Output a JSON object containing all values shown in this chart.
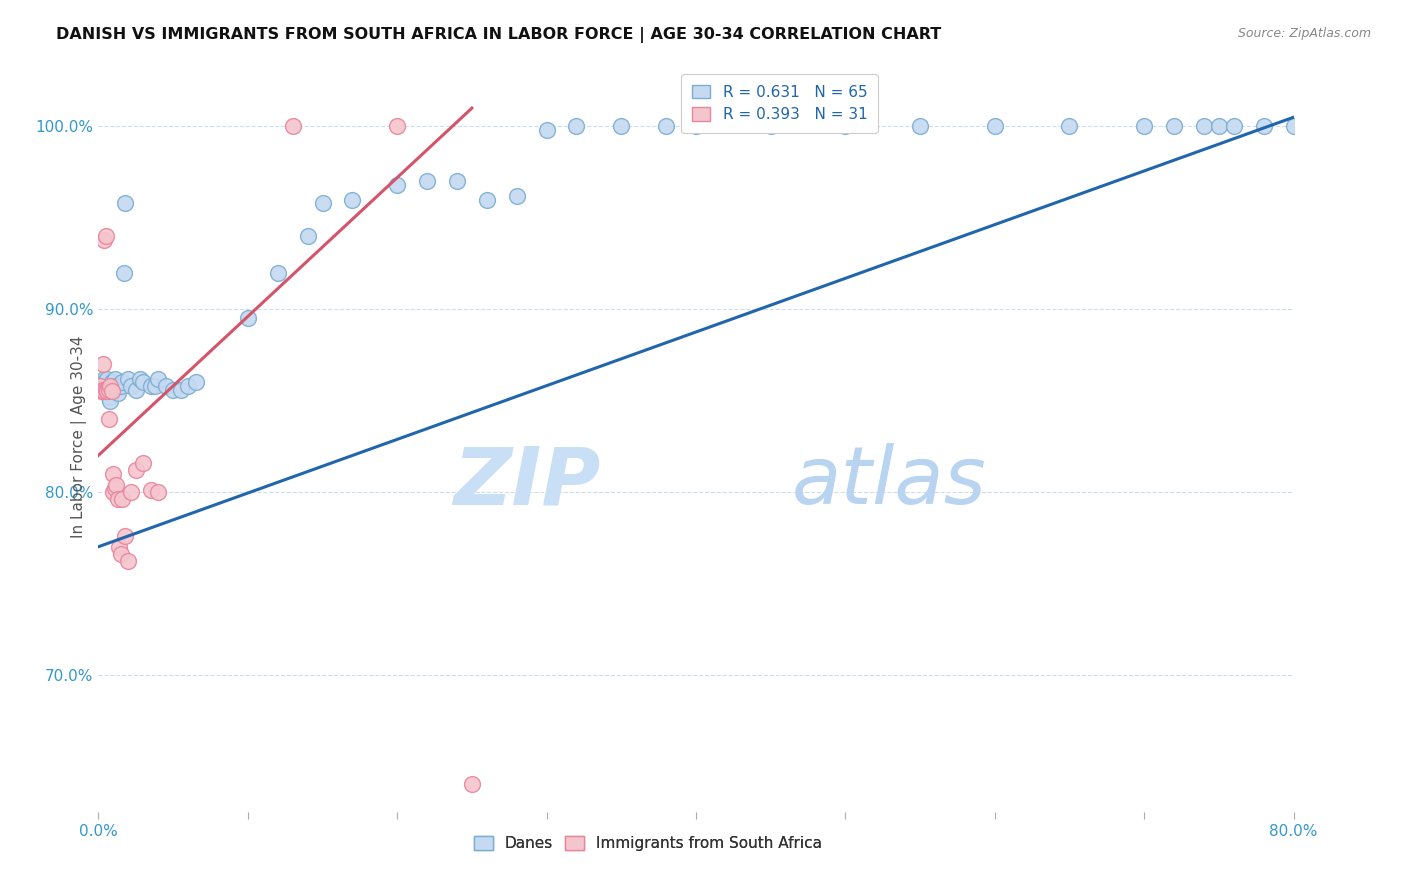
{
  "title": "DANISH VS IMMIGRANTS FROM SOUTH AFRICA IN LABOR FORCE | AGE 30-34 CORRELATION CHART",
  "source": "Source: ZipAtlas.com",
  "ylabel": "In Labor Force | Age 30-34",
  "xlim": [
    0.0,
    0.8
  ],
  "ylim": [
    0.625,
    1.035
  ],
  "ytick_positions": [
    0.7,
    0.8,
    0.9,
    1.0
  ],
  "ytick_labels": [
    "70.0%",
    "80.0%",
    "90.0%",
    "100.0%"
  ],
  "xtick_positions": [
    0.0,
    0.1,
    0.2,
    0.3,
    0.4,
    0.5,
    0.6,
    0.7,
    0.8
  ],
  "xtick_labels": [
    "0.0%",
    "",
    "",
    "",
    "",
    "",
    "",
    "",
    "80.0%"
  ],
  "legend_blue_label": "R = 0.631   N = 65",
  "legend_pink_label": "R = 0.393   N = 31",
  "scatter_blue_face": "#c5d9f0",
  "scatter_blue_edge": "#7aadd4",
  "scatter_pink_face": "#f5c5ce",
  "scatter_pink_edge": "#e8859a",
  "line_blue_color": "#2166ac",
  "line_pink_color": "#d4546a",
  "watermark_zip": "ZIP",
  "watermark_atlas": "atlas",
  "watermark_color": "#ddeeff",
  "background_color": "#ffffff",
  "blue_x": [
    0.002,
    0.003,
    0.004,
    0.004,
    0.005,
    0.005,
    0.006,
    0.006,
    0.007,
    0.007,
    0.007,
    0.008,
    0.008,
    0.009,
    0.009,
    0.01,
    0.01,
    0.011,
    0.012,
    0.013,
    0.014,
    0.015,
    0.016,
    0.017,
    0.018,
    0.02,
    0.022,
    0.025,
    0.028,
    0.03,
    0.035,
    0.038,
    0.04,
    0.045,
    0.05,
    0.055,
    0.06,
    0.065,
    0.1,
    0.12,
    0.14,
    0.15,
    0.17,
    0.2,
    0.22,
    0.24,
    0.26,
    0.28,
    0.3,
    0.32,
    0.35,
    0.38,
    0.4,
    0.45,
    0.5,
    0.55,
    0.6,
    0.65,
    0.7,
    0.72,
    0.74,
    0.75,
    0.76,
    0.78,
    0.8
  ],
  "blue_y": [
    0.856,
    0.858,
    0.862,
    0.86,
    0.856,
    0.855,
    0.858,
    0.862,
    0.855,
    0.858,
    0.852,
    0.85,
    0.858,
    0.856,
    0.86,
    0.855,
    0.858,
    0.862,
    0.858,
    0.854,
    0.858,
    0.858,
    0.86,
    0.92,
    0.958,
    0.862,
    0.858,
    0.856,
    0.862,
    0.86,
    0.858,
    0.858,
    0.862,
    0.858,
    0.856,
    0.856,
    0.858,
    0.86,
    0.895,
    0.92,
    0.94,
    0.958,
    0.96,
    0.968,
    0.97,
    0.97,
    0.96,
    0.962,
    0.998,
    1.0,
    1.0,
    1.0,
    1.0,
    1.0,
    1.0,
    1.0,
    1.0,
    1.0,
    1.0,
    1.0,
    1.0,
    1.0,
    1.0,
    1.0,
    1.0
  ],
  "pink_x": [
    0.001,
    0.002,
    0.003,
    0.003,
    0.004,
    0.004,
    0.005,
    0.005,
    0.006,
    0.007,
    0.007,
    0.008,
    0.009,
    0.01,
    0.01,
    0.011,
    0.012,
    0.013,
    0.014,
    0.015,
    0.016,
    0.018,
    0.02,
    0.022,
    0.025,
    0.03,
    0.035,
    0.04,
    0.13,
    0.2,
    0.25
  ],
  "pink_y": [
    0.858,
    0.855,
    0.856,
    0.87,
    0.938,
    0.855,
    0.94,
    0.856,
    0.855,
    0.856,
    0.84,
    0.858,
    0.855,
    0.8,
    0.81,
    0.802,
    0.804,
    0.796,
    0.77,
    0.766,
    0.796,
    0.776,
    0.762,
    0.8,
    0.812,
    0.816,
    0.801,
    0.8,
    1.0,
    1.0,
    0.64
  ],
  "blue_line_x0": 0.0,
  "blue_line_x1": 0.8,
  "blue_line_y0": 0.77,
  "blue_line_y1": 1.005,
  "pink_line_x0": 0.0,
  "pink_line_x1": 0.25,
  "pink_line_y0": 0.82,
  "pink_line_y1": 1.01
}
